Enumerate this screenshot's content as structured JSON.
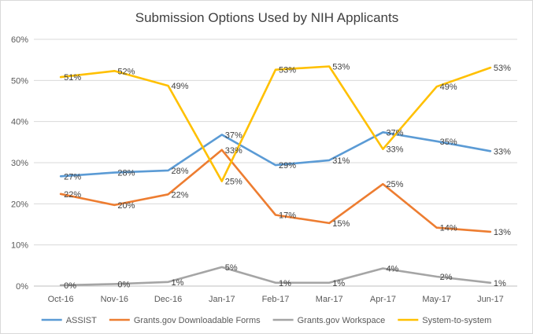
{
  "chart_data": {
    "type": "line",
    "title": "Submission Options Used by NIH Applicants",
    "xlabel": "",
    "ylabel": "",
    "categories": [
      "Oct-16",
      "Nov-16",
      "Dec-16",
      "Jan-17",
      "Feb-17",
      "Mar-17",
      "Apr-17",
      "May-17",
      "Jun-17"
    ],
    "y_ticks": [
      "0%",
      "10%",
      "20%",
      "30%",
      "40%",
      "50%",
      "60%"
    ],
    "ylim": [
      0,
      60
    ],
    "grid": true,
    "legend_position": "bottom",
    "series": [
      {
        "name": "ASSIST",
        "color": "#5B9BD5",
        "values": [
          26.7,
          27.6,
          28.1,
          36.8,
          29.4,
          30.6,
          37.4,
          35.2,
          32.8
        ],
        "labels": [
          "27%",
          "28%",
          "28%",
          "37%",
          "29%",
          "31%",
          "37%",
          "35%",
          "33%"
        ]
      },
      {
        "name": "Grants.gov Downloadable Forms",
        "color": "#ED7D31",
        "values": [
          22.4,
          19.7,
          22.3,
          33.1,
          17.3,
          15.3,
          24.8,
          14.2,
          13.2
        ],
        "labels": [
          "22%",
          "20%",
          "22%",
          "33%",
          "17%",
          "15%",
          "25%",
          "14%",
          "13%"
        ]
      },
      {
        "name": "Grants.gov Workspace",
        "color": "#A5A5A5",
        "values": [
          0.2,
          0.5,
          1.0,
          4.6,
          0.8,
          0.8,
          4.3,
          2.3,
          0.8
        ],
        "labels": [
          "0%",
          "0%",
          "1%",
          "5%",
          "1%",
          "1%",
          "4%",
          "2%",
          "1%"
        ]
      },
      {
        "name": "System-to-system",
        "color": "#FFC000",
        "values": [
          50.8,
          52.3,
          48.7,
          25.5,
          52.6,
          53.4,
          33.3,
          48.5,
          53.1
        ],
        "labels": [
          "51%",
          "52%",
          "49%",
          "25%",
          "53%",
          "53%",
          "33%",
          "49%",
          "53%"
        ]
      }
    ]
  }
}
